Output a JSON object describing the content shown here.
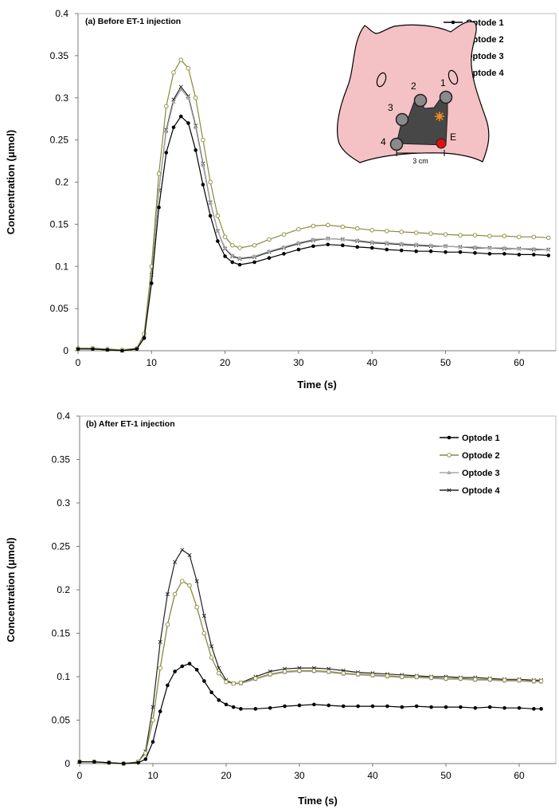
{
  "colors": {
    "optode_1": "#000000",
    "optode_2": "#8a8a3a",
    "optode_3": "#a8a8a8",
    "optode_4": "#222222",
    "head_fill": "#f4c2c4",
    "probe_fill": "#474747",
    "emitter": "#e01010",
    "marker": "#f08a1e"
  },
  "inset": {
    "labels": [
      "1",
      "2",
      "3",
      "4",
      "E"
    ],
    "scale_label": "3 cm",
    "icons": [
      "pig-head-icon",
      "optical-probe-icon",
      "emitter-icon",
      "lesion-marker-icon"
    ]
  },
  "chart_data": [
    {
      "type": "line",
      "title": "(a) Before ET-1 injection",
      "xlabel": "Time (s)",
      "ylabel": "Concentration (μmol)",
      "xlim": [
        0,
        65
      ],
      "ylim": [
        0,
        0.4
      ],
      "xticks": [
        "0",
        "10",
        "20",
        "30",
        "40",
        "50",
        "60"
      ],
      "yticks": [
        "0",
        "0.05",
        "0.1",
        "0.15",
        "0.2",
        "0.25",
        "0.3",
        "0.35",
        "0.4"
      ],
      "grid": false,
      "legend": "top-right",
      "x": [
        0,
        2,
        4,
        6,
        8,
        9,
        10,
        11,
        12,
        13,
        14,
        15,
        16,
        17,
        18,
        19,
        20,
        21,
        22,
        24,
        26,
        28,
        30,
        32,
        34,
        36,
        38,
        40,
        42,
        44,
        46,
        48,
        50,
        52,
        54,
        56,
        58,
        60,
        62,
        64
      ],
      "series": [
        {
          "name": "Optode 1",
          "values": [
            0.002,
            0.002,
            0.001,
            0.0,
            0.002,
            0.015,
            0.08,
            0.17,
            0.235,
            0.265,
            0.278,
            0.27,
            0.238,
            0.197,
            0.16,
            0.13,
            0.112,
            0.105,
            0.102,
            0.105,
            0.11,
            0.115,
            0.12,
            0.124,
            0.126,
            0.125,
            0.123,
            0.122,
            0.12,
            0.119,
            0.118,
            0.118,
            0.117,
            0.117,
            0.116,
            0.115,
            0.115,
            0.114,
            0.114,
            0.113
          ]
        },
        {
          "name": "Optode 2",
          "values": [
            0.003,
            0.003,
            0.002,
            0.001,
            0.003,
            0.02,
            0.1,
            0.21,
            0.29,
            0.33,
            0.345,
            0.335,
            0.3,
            0.25,
            0.2,
            0.16,
            0.135,
            0.125,
            0.122,
            0.125,
            0.132,
            0.138,
            0.144,
            0.148,
            0.149,
            0.147,
            0.145,
            0.143,
            0.142,
            0.141,
            0.14,
            0.139,
            0.138,
            0.137,
            0.137,
            0.136,
            0.136,
            0.135,
            0.135,
            0.134
          ]
        },
        {
          "name": "Optode 3",
          "values": [
            0.002,
            0.002,
            0.001,
            0.0,
            0.002,
            0.018,
            0.09,
            0.19,
            0.26,
            0.295,
            0.31,
            0.3,
            0.265,
            0.22,
            0.175,
            0.142,
            0.122,
            0.113,
            0.11,
            0.112,
            0.118,
            0.123,
            0.128,
            0.132,
            0.133,
            0.132,
            0.131,
            0.129,
            0.128,
            0.127,
            0.126,
            0.125,
            0.124,
            0.123,
            0.123,
            0.122,
            0.122,
            0.121,
            0.121,
            0.12
          ]
        },
        {
          "name": "Optode 4",
          "values": [
            0.002,
            0.002,
            0.001,
            0.0,
            0.002,
            0.018,
            0.09,
            0.19,
            0.262,
            0.298,
            0.313,
            0.302,
            0.267,
            0.222,
            0.176,
            0.142,
            0.121,
            0.112,
            0.109,
            0.111,
            0.117,
            0.122,
            0.127,
            0.131,
            0.133,
            0.132,
            0.13,
            0.128,
            0.127,
            0.126,
            0.125,
            0.124,
            0.124,
            0.123,
            0.122,
            0.122,
            0.121,
            0.121,
            0.12,
            0.12
          ]
        }
      ]
    },
    {
      "type": "line",
      "title": "(b) After ET-1 injection",
      "xlabel": "Time (s)",
      "ylabel": "Concentration (μmol)",
      "xlim": [
        0,
        65
      ],
      "ylim": [
        0,
        0.4
      ],
      "xticks": [
        "0",
        "10",
        "20",
        "30",
        "40",
        "50",
        "60"
      ],
      "yticks": [
        "0",
        "0.05",
        "0.1",
        "0.15",
        "0.2",
        "0.25",
        "0.3",
        "0.35",
        "0.4"
      ],
      "grid": false,
      "legend": "top-right",
      "x": [
        0,
        2,
        4,
        6,
        8,
        9,
        10,
        11,
        12,
        13,
        14,
        15,
        16,
        17,
        18,
        19,
        20,
        21,
        22,
        24,
        26,
        28,
        30,
        32,
        34,
        36,
        38,
        40,
        42,
        44,
        46,
        48,
        50,
        52,
        54,
        56,
        58,
        60,
        62,
        63
      ],
      "series": [
        {
          "name": "Optode 1",
          "values": [
            0.002,
            0.002,
            0.001,
            0.0,
            0.001,
            0.005,
            0.025,
            0.06,
            0.09,
            0.106,
            0.112,
            0.115,
            0.108,
            0.095,
            0.082,
            0.073,
            0.068,
            0.065,
            0.063,
            0.063,
            0.064,
            0.066,
            0.067,
            0.068,
            0.067,
            0.066,
            0.066,
            0.066,
            0.066,
            0.065,
            0.066,
            0.065,
            0.065,
            0.065,
            0.064,
            0.065,
            0.064,
            0.064,
            0.063,
            0.063
          ]
        },
        {
          "name": "Optode 2",
          "values": [
            0.002,
            0.002,
            0.001,
            0.0,
            0.002,
            0.012,
            0.05,
            0.11,
            0.16,
            0.195,
            0.21,
            0.205,
            0.18,
            0.15,
            0.122,
            0.104,
            0.094,
            0.092,
            0.093,
            0.098,
            0.103,
            0.106,
            0.107,
            0.107,
            0.106,
            0.104,
            0.103,
            0.102,
            0.101,
            0.1,
            0.1,
            0.099,
            0.098,
            0.098,
            0.097,
            0.097,
            0.096,
            0.096,
            0.095,
            0.095
          ]
        },
        {
          "name": "Optode 3",
          "values": [
            0.002,
            0.002,
            0.001,
            0.0,
            0.002,
            0.012,
            0.05,
            0.11,
            0.16,
            0.195,
            0.21,
            0.205,
            0.18,
            0.15,
            0.122,
            0.104,
            0.094,
            0.092,
            0.092,
            0.097,
            0.102,
            0.105,
            0.106,
            0.106,
            0.105,
            0.103,
            0.102,
            0.101,
            0.1,
            0.099,
            0.099,
            0.098,
            0.097,
            0.097,
            0.096,
            0.096,
            0.095,
            0.095,
            0.094,
            0.094
          ]
        },
        {
          "name": "Optode 4",
          "values": [
            0.002,
            0.002,
            0.001,
            0.0,
            0.002,
            0.014,
            0.065,
            0.14,
            0.195,
            0.232,
            0.246,
            0.24,
            0.21,
            0.17,
            0.135,
            0.11,
            0.096,
            0.092,
            0.093,
            0.1,
            0.106,
            0.109,
            0.11,
            0.11,
            0.109,
            0.107,
            0.105,
            0.104,
            0.103,
            0.102,
            0.101,
            0.1,
            0.1,
            0.099,
            0.099,
            0.098,
            0.097,
            0.097,
            0.096,
            0.096
          ]
        }
      ]
    }
  ]
}
